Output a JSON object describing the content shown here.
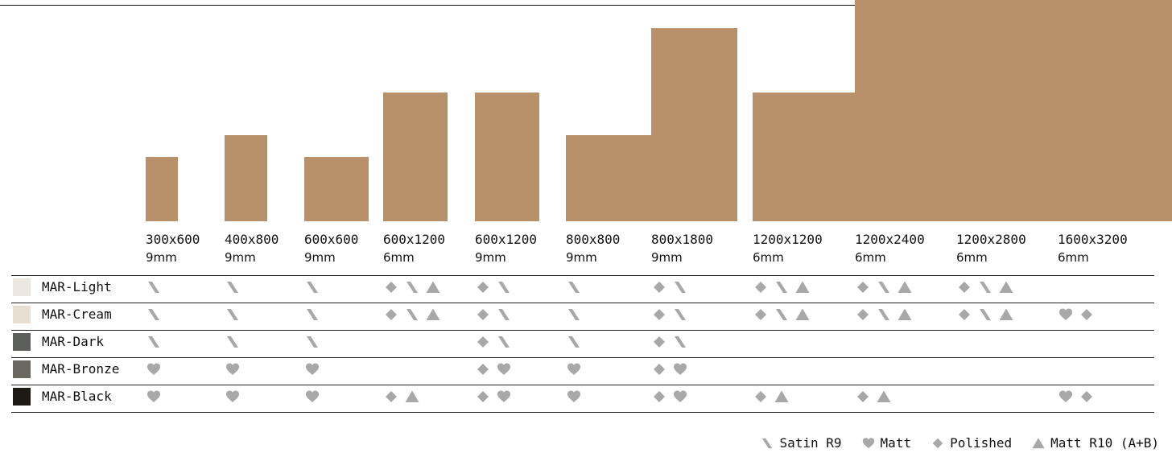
{
  "colors": {
    "tile": "#b8916a",
    "icon": "#a8a8a8",
    "rule": "#222222"
  },
  "sizes": [
    {
      "dimensions": "300x600",
      "thickness": "9mm"
    },
    {
      "dimensions": "400x800",
      "thickness": "9mm"
    },
    {
      "dimensions": "600x600",
      "thickness": "9mm"
    },
    {
      "dimensions": "600x1200",
      "thickness": "6mm"
    },
    {
      "dimensions": "600x1200",
      "thickness": "9mm"
    },
    {
      "dimensions": "800x800",
      "thickness": "9mm"
    },
    {
      "dimensions": "800x1800",
      "thickness": "9mm"
    },
    {
      "dimensions": "1200x1200",
      "thickness": "6mm"
    },
    {
      "dimensions": "1200x2400",
      "thickness": "6mm"
    },
    {
      "dimensions": "1200x2800",
      "thickness": "6mm"
    },
    {
      "dimensions": "1600x3200",
      "thickness": "6mm"
    }
  ],
  "rows": [
    {
      "name": "MAR-Light",
      "swatch": "#ece8e1",
      "finishes": [
        [
          "satin"
        ],
        [
          "satin"
        ],
        [
          "satin"
        ],
        [
          "polished",
          "satin",
          "matt-r10"
        ],
        [
          "polished",
          "satin"
        ],
        [
          "satin"
        ],
        [
          "polished",
          "satin"
        ],
        [
          "polished",
          "satin",
          "matt-r10"
        ],
        [
          "polished",
          "satin",
          "matt-r10"
        ],
        [
          "polished",
          "satin",
          "matt-r10"
        ],
        []
      ]
    },
    {
      "name": "MAR-Cream",
      "swatch": "#e7e0d2",
      "finishes": [
        [
          "satin"
        ],
        [
          "satin"
        ],
        [
          "satin"
        ],
        [
          "polished",
          "satin",
          "matt-r10"
        ],
        [
          "polished",
          "satin"
        ],
        [
          "satin"
        ],
        [
          "polished",
          "satin"
        ],
        [
          "polished",
          "satin",
          "matt-r10"
        ],
        [
          "polished",
          "satin",
          "matt-r10"
        ],
        [
          "polished",
          "satin",
          "matt-r10"
        ],
        [
          "matt",
          "polished"
        ]
      ]
    },
    {
      "name": "MAR-Dark",
      "swatch": "#5c5f5c",
      "finishes": [
        [
          "satin"
        ],
        [
          "satin"
        ],
        [
          "satin"
        ],
        [],
        [
          "polished",
          "satin"
        ],
        [
          "satin"
        ],
        [
          "polished",
          "satin"
        ],
        [],
        [],
        [],
        []
      ]
    },
    {
      "name": "MAR-Bronze",
      "swatch": "#6a6861",
      "finishes": [
        [
          "matt"
        ],
        [
          "matt"
        ],
        [
          "matt"
        ],
        [],
        [
          "polished",
          "matt"
        ],
        [
          "matt"
        ],
        [
          "polished",
          "matt"
        ],
        [],
        [],
        [],
        []
      ]
    },
    {
      "name": "MAR-Black",
      "swatch": "#1d1a16",
      "finishes": [
        [
          "matt"
        ],
        [
          "matt"
        ],
        [
          "matt"
        ],
        [
          "polished",
          "matt-r10"
        ],
        [
          "polished",
          "matt"
        ],
        [
          "matt"
        ],
        [
          "polished",
          "matt"
        ],
        [
          "polished",
          "matt-r10"
        ],
        [
          "polished",
          "matt-r10"
        ],
        [],
        [
          "matt",
          "polished"
        ]
      ]
    }
  ],
  "legend": [
    {
      "icon": "satin",
      "label": "Satin R9"
    },
    {
      "icon": "matt",
      "label": "Matt"
    },
    {
      "icon": "polished",
      "label": "Polished"
    },
    {
      "icon": "matt-r10",
      "label": "Matt R10 (A+B)"
    }
  ]
}
